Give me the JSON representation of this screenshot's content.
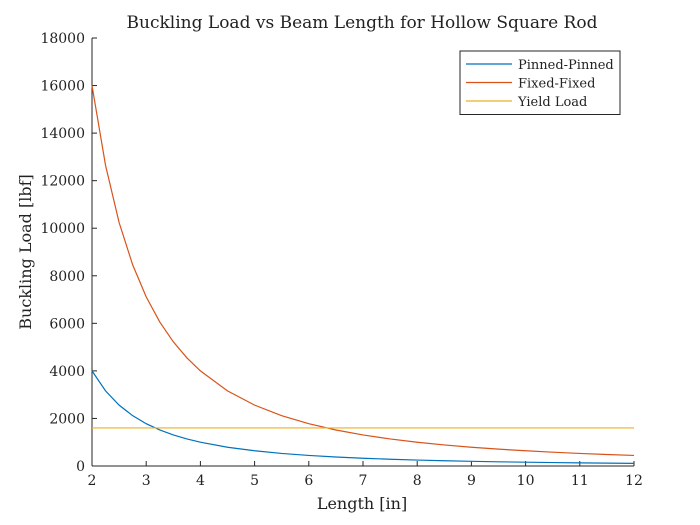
{
  "chart_data": {
    "type": "line",
    "title": "Buckling Load vs Beam Length for Hollow Square Rod",
    "xlabel": "Length [in]",
    "ylabel": "Buckling Load [lbf]",
    "xlim": [
      2,
      12
    ],
    "ylim": [
      0,
      18000
    ],
    "xticks": [
      2,
      3,
      4,
      5,
      6,
      7,
      8,
      9,
      10,
      11,
      12
    ],
    "yticks": [
      0,
      2000,
      4000,
      6000,
      8000,
      10000,
      12000,
      14000,
      16000,
      18000
    ],
    "grid": false,
    "legend_position": "top-right",
    "series": [
      {
        "name": "Pinned-Pinned",
        "color": "#0072BD",
        "x": [
          2,
          2.25,
          2.5,
          2.75,
          3,
          3.25,
          3.5,
          3.75,
          4,
          4.5,
          5,
          5.5,
          6,
          6.5,
          7,
          7.5,
          8,
          8.5,
          9,
          9.5,
          10,
          10.5,
          11,
          11.5,
          12
        ],
        "y": [
          4000,
          3160,
          2560,
          2116,
          1778,
          1515,
          1306,
          1138,
          1000,
          790,
          640,
          529,
          444,
          379,
          327,
          284,
          250,
          221,
          198,
          177,
          160,
          145,
          132,
          121,
          111
        ]
      },
      {
        "name": "Fixed-Fixed",
        "color": "#D95319",
        "x": [
          2,
          2.25,
          2.5,
          2.75,
          3,
          3.25,
          3.5,
          3.75,
          4,
          4.5,
          5,
          5.5,
          6,
          6.5,
          7,
          7.5,
          8,
          8.5,
          9,
          9.5,
          10,
          10.5,
          11,
          11.5,
          12
        ],
        "y": [
          16000,
          12642,
          10240,
          8463,
          7111,
          6059,
          5224,
          4551,
          4000,
          3160,
          2560,
          2116,
          1778,
          1515,
          1306,
          1138,
          1000,
          886,
          790,
          709,
          640,
          580,
          529,
          484,
          444
        ]
      },
      {
        "name": "Yield Load",
        "color": "#EDB120",
        "x": [
          2,
          12
        ],
        "y": [
          1600,
          1600
        ]
      }
    ]
  }
}
